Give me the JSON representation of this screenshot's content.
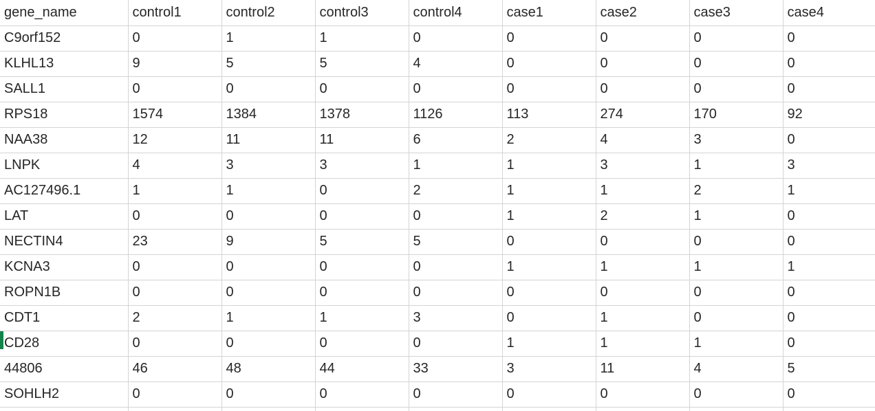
{
  "table": {
    "columns": [
      "gene_name",
      "control1",
      "control2",
      "control3",
      "control4",
      "case1",
      "case2",
      "case3",
      "case4"
    ],
    "rows": [
      [
        "C9orf152",
        "0",
        "1",
        "1",
        "0",
        "0",
        "0",
        "0",
        "0"
      ],
      [
        "KLHL13",
        "9",
        "5",
        "5",
        "4",
        "0",
        "0",
        "0",
        "0"
      ],
      [
        "SALL1",
        "0",
        "0",
        "0",
        "0",
        "0",
        "0",
        "0",
        "0"
      ],
      [
        "RPS18",
        "1574",
        "1384",
        "1378",
        "1126",
        "113",
        "274",
        "170",
        "92"
      ],
      [
        "NAA38",
        "12",
        "11",
        "11",
        "6",
        "2",
        "4",
        "3",
        "0"
      ],
      [
        "LNPK",
        "4",
        "3",
        "3",
        "1",
        "1",
        "3",
        "1",
        "3"
      ],
      [
        "AC127496.1",
        "1",
        "1",
        "0",
        "2",
        "1",
        "1",
        "2",
        "1"
      ],
      [
        "LAT",
        "0",
        "0",
        "0",
        "0",
        "1",
        "2",
        "1",
        "0"
      ],
      [
        "NECTIN4",
        "23",
        "9",
        "5",
        "5",
        "0",
        "0",
        "0",
        "0"
      ],
      [
        "KCNA3",
        "0",
        "0",
        "0",
        "0",
        "1",
        "1",
        "1",
        "1"
      ],
      [
        "ROPN1B",
        "0",
        "0",
        "0",
        "0",
        "0",
        "0",
        "0",
        "0"
      ],
      [
        "CDT1",
        "2",
        "1",
        "1",
        "3",
        "0",
        "1",
        "0",
        "0"
      ],
      [
        "CD28",
        "0",
        "0",
        "0",
        "0",
        "1",
        "1",
        "1",
        "0"
      ],
      [
        "44806",
        "46",
        "48",
        "44",
        "33",
        "3",
        "11",
        "4",
        "5"
      ],
      [
        "SOHLH2",
        "0",
        "0",
        "0",
        "0",
        "0",
        "0",
        "0",
        "0"
      ]
    ]
  },
  "colors": {
    "gridline": "#d4d4d4",
    "text": "#262626",
    "selection_green": "#14834b",
    "background": "#ffffff"
  }
}
